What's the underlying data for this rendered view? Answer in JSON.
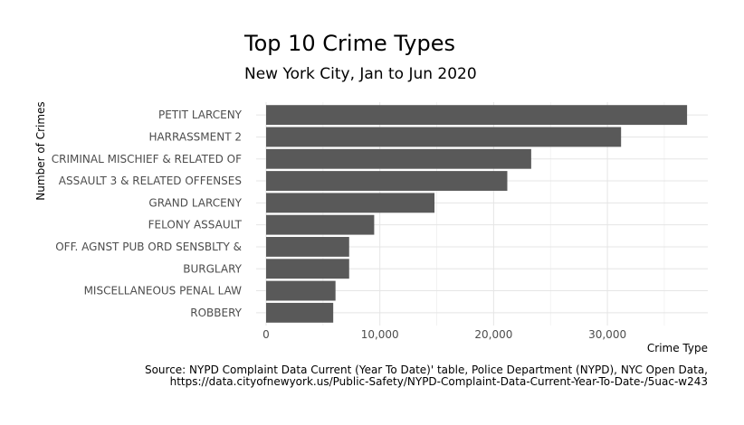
{
  "chart_data": {
    "type": "bar",
    "orientation": "horizontal",
    "title": "Top 10 Crime Types",
    "subtitle": "New York City, Jan to Jun 2020",
    "xlabel": "Crime Type",
    "ylabel": "Number of Crimes",
    "categories": [
      "PETIT LARCENY",
      "HARRASSMENT 2",
      "CRIMINAL MISCHIEF & RELATED OF",
      "ASSAULT 3 & RELATED OFFENSES",
      "GRAND LARCENY",
      "FELONY ASSAULT",
      "OFF. AGNST PUB ORD SENSBLTY &",
      "BURGLARY",
      "MISCELLANEOUS PENAL LAW",
      "ROBBERY"
    ],
    "values": [
      37000,
      31200,
      23300,
      21200,
      14800,
      9500,
      7300,
      7300,
      6100,
      5900
    ],
    "xlim": [
      0,
      38900
    ],
    "xticks": [
      0,
      10000,
      20000,
      30000
    ],
    "xtick_labels": [
      "0",
      "10,000",
      "20,000",
      "30,000"
    ],
    "bar_color": "#595959",
    "grid": true,
    "caption_lines": [
      "Source: NYPD Complaint Data Current (Year To Date)' table, Police Department (NYPD), NYC Open Data,",
      "https://data.cityofnewyork.us/Public-Safety/NYPD-Complaint-Data-Current-Year-To-Date-/5uac-w243"
    ]
  }
}
